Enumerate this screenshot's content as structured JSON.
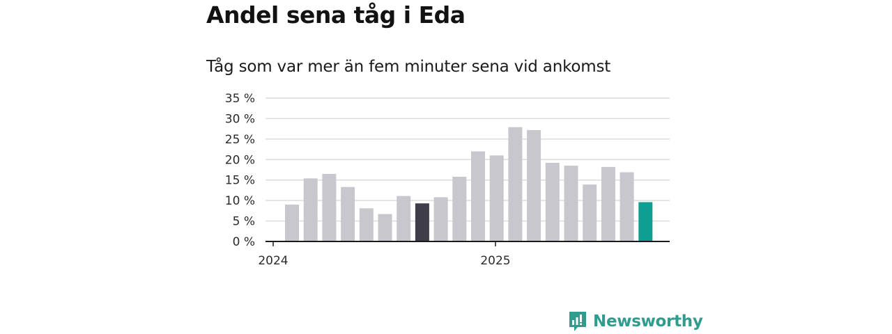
{
  "header": {
    "title": "Andel sena tåg i Eda",
    "subtitle": "Tåg som var mer än fem minuter sena vid ankomst"
  },
  "brand": {
    "name": "Newsworthy",
    "icon": "newsworthy-logo-icon",
    "color": "#2f9c8e"
  },
  "colors": {
    "bar": "#c8c7ce",
    "highlight_previous": "#3f3d4a",
    "highlight_current": "#0f9e92",
    "grid": "#dcdcdc",
    "axis": "#1a1a1a"
  },
  "chart_data": {
    "type": "bar",
    "title": "Andel sena tåg i Eda",
    "subtitle": "Tåg som var mer än fem minuter sena vid ankomst",
    "xlabel": "",
    "ylabel": "",
    "ylim": [
      0,
      35
    ],
    "yticks": [
      0,
      5,
      10,
      15,
      20,
      25,
      30,
      35
    ],
    "ytick_labels": [
      "0 %",
      "5 %",
      "10 %",
      "15 %",
      "20 %",
      "25 %",
      "30 %",
      "35 %"
    ],
    "xtick_labels": [
      "2024",
      "2025"
    ],
    "grid": true,
    "values": [
      9,
      15.4,
      16.5,
      13.3,
      8.1,
      6.7,
      11.1,
      9.3,
      10.8,
      15.8,
      22,
      21,
      27.9,
      27.2,
      19.2,
      18.5,
      13.9,
      18.2,
      16.9,
      9.6
    ],
    "highlight": {
      "previous_index": 7,
      "current_index": 19
    }
  }
}
